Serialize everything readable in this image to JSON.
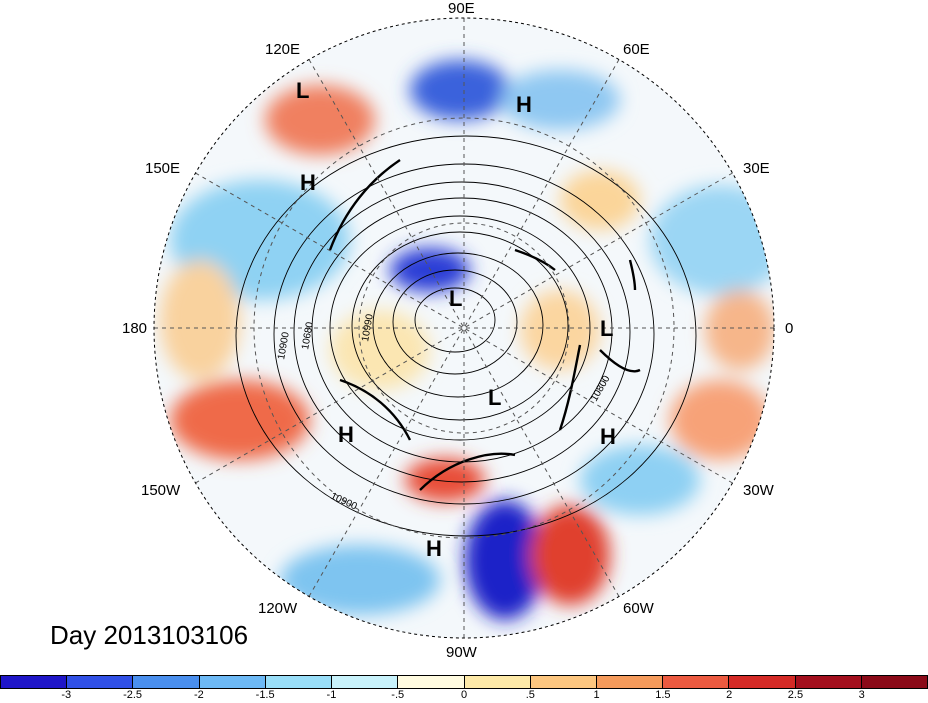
{
  "map": {
    "longitude_labels": [
      "90E",
      "60E",
      "30E",
      "0",
      "30W",
      "60W",
      "90W",
      "120W",
      "150W",
      "180",
      "150E",
      "120E"
    ],
    "pressure_centers": [
      {
        "type": "L",
        "lon_lat": "110E 58N"
      },
      {
        "type": "H",
        "lon_lat": "80E 55N"
      },
      {
        "type": "H",
        "lon_lat": "140E 50N"
      },
      {
        "type": "L",
        "lon_lat": "90N"
      },
      {
        "type": "L",
        "lon_lat": "5W 58N"
      },
      {
        "type": "L",
        "lon_lat": "80W 60N"
      },
      {
        "type": "H",
        "lon_lat": "140W 45N"
      },
      {
        "type": "H",
        "lon_lat": "40W 40N"
      },
      {
        "type": "H",
        "lon_lat": "90W 30N"
      }
    ],
    "contour_labels": [
      "10900",
      "10680",
      "10990",
      "10800",
      "10900"
    ]
  },
  "day_label": "Day 2013103106",
  "colorbar": {
    "tick_labels": [
      "-3",
      "-2.5",
      "-2",
      "-1.5",
      "-1",
      "-.5",
      "0",
      ".5",
      "1",
      "1.5",
      "2",
      "2.5",
      "3"
    ],
    "colors": [
      "#1f16c8",
      "#3050e6",
      "#4a8fee",
      "#6db9f5",
      "#99def8",
      "#c8f2fb",
      "#fffbe0",
      "#fde9a8",
      "#fcc680",
      "#f59b5c",
      "#ec5a40",
      "#d42a26",
      "#a30f1d",
      "#8b0a18"
    ]
  }
}
